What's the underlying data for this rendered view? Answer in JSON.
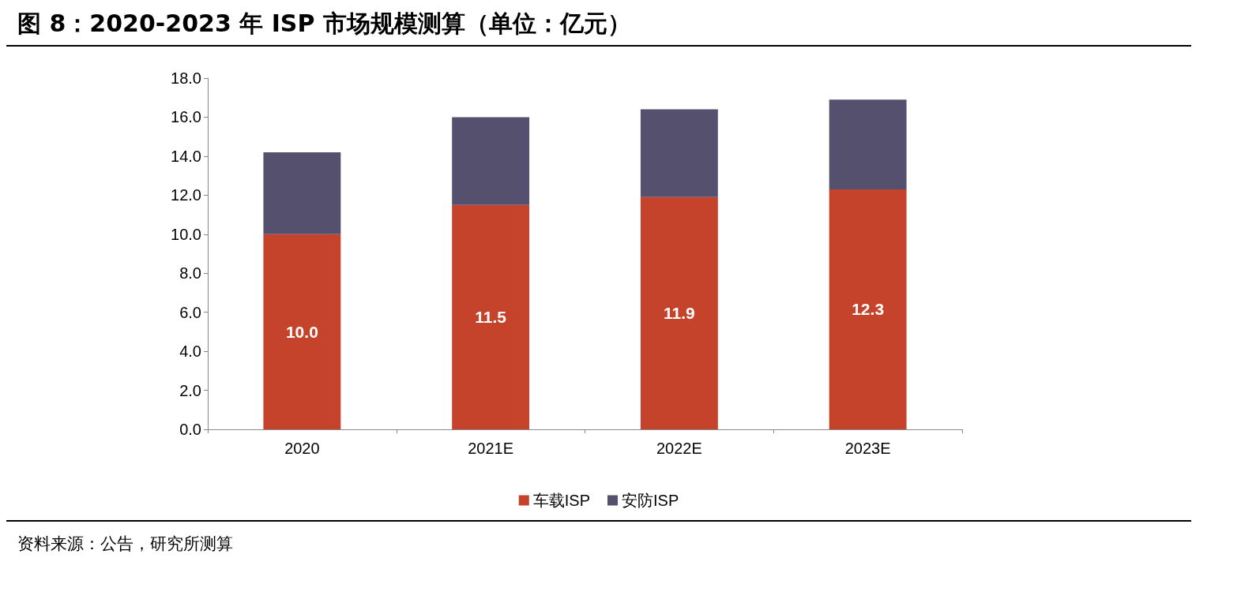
{
  "chart_data": {
    "type": "bar",
    "title": "图 8：2020-2023 年 ISP 市场规模测算（单位：亿元）",
    "categories": [
      "2020",
      "2021E",
      "2022E",
      "2023E"
    ],
    "series": [
      {
        "name": "车载ISP",
        "color": "#c5432a",
        "values": [
          10.0,
          11.5,
          11.9,
          12.3
        ],
        "value_labels": [
          "10.0",
          "11.5",
          "11.9",
          "12.3"
        ]
      },
      {
        "name": "安防ISP",
        "color": "#56506f",
        "values": [
          4.2,
          4.5,
          4.5,
          4.6
        ]
      }
    ],
    "stacked": true,
    "ylim": [
      0,
      18
    ],
    "yticks": [
      {
        "value": 0,
        "label": "0.0"
      },
      {
        "value": 2,
        "label": "2.0"
      },
      {
        "value": 4,
        "label": "4.0"
      },
      {
        "value": 6,
        "label": "6.0"
      },
      {
        "value": 8,
        "label": "8.0"
      },
      {
        "value": 10,
        "label": "10.0"
      },
      {
        "value": 12,
        "label": "12.0"
      },
      {
        "value": 14,
        "label": "14.0"
      },
      {
        "value": 16,
        "label": "16.0"
      },
      {
        "value": 18,
        "label": "18.0"
      }
    ],
    "grid": false,
    "legend": "bottom",
    "annotations": [
      "资料来源：公告，研究所测算"
    ]
  }
}
